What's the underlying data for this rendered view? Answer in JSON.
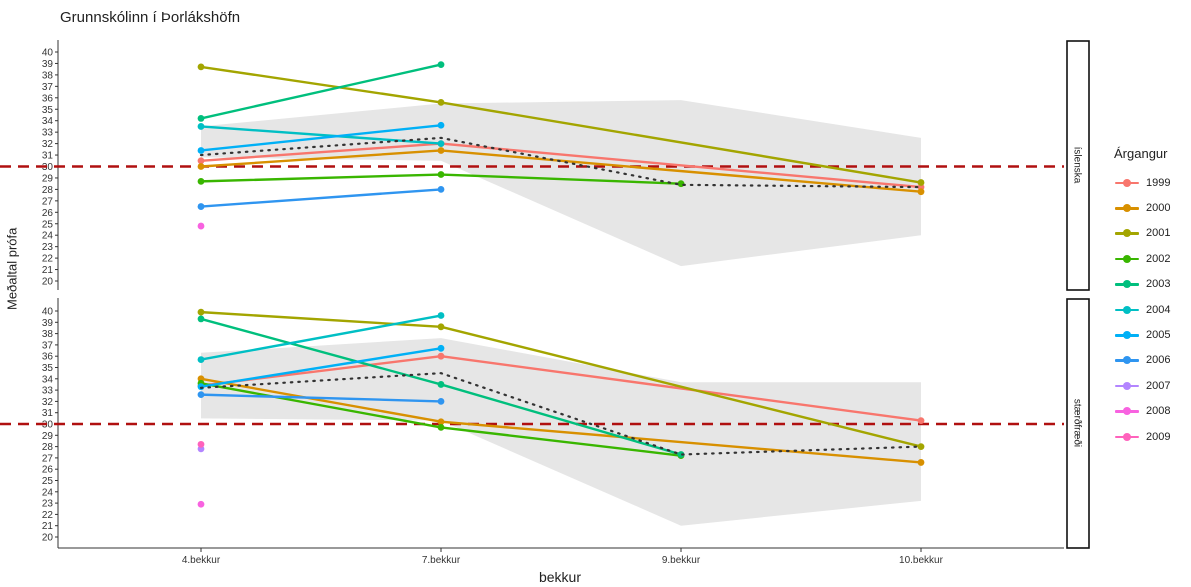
{
  "chart_data": {
    "type": "line",
    "title": "Grunnskólinn í Þorlákshöfn",
    "xlabel": "bekkur",
    "ylabel": "Meðaltal prófa",
    "categories": [
      "4.bekkur",
      "7.bekkur",
      "9.bekkur",
      "10.bekkur"
    ],
    "ylim": [
      19,
      41
    ],
    "yticks": [
      20,
      21,
      22,
      23,
      24,
      25,
      26,
      27,
      28,
      29,
      30,
      31,
      32,
      33,
      34,
      35,
      36,
      37,
      38,
      39,
      40
    ],
    "reference_line": 30,
    "legend": {
      "title": "Árgangur",
      "position": "right"
    },
    "grid": false,
    "series_colors": {
      "1999": "#F8766D",
      "2000": "#D89000",
      "2001": "#A3A500",
      "2002": "#39B600",
      "2003": "#00BF7D",
      "2004": "#00BFC4",
      "2005": "#00B0F6",
      "2006": "#2F95F0",
      "2007": "#B385FF",
      "2008": "#F862E0",
      "2009": "#FF62BC"
    },
    "panels": [
      {
        "strip": "íslenska",
        "series": [
          {
            "name": "1999",
            "values": [
              30.5,
              32.0,
              null,
              28.2
            ]
          },
          {
            "name": "2000",
            "values": [
              30.0,
              31.4,
              null,
              27.8
            ]
          },
          {
            "name": "2001",
            "values": [
              38.7,
              35.6,
              null,
              28.6
            ]
          },
          {
            "name": "2002",
            "values": [
              28.7,
              29.3,
              28.5,
              null
            ]
          },
          {
            "name": "2003",
            "values": [
              34.2,
              38.9,
              null,
              null
            ]
          },
          {
            "name": "2004",
            "values": [
              33.5,
              32.0,
              null,
              null
            ]
          },
          {
            "name": "2005",
            "values": [
              31.4,
              33.6,
              null,
              null
            ]
          },
          {
            "name": "2006",
            "values": [
              26.5,
              28.0,
              null,
              null
            ]
          },
          {
            "name": "2008",
            "values": [
              24.8,
              null,
              null,
              null
            ]
          }
        ],
        "mean": [
          31.0,
          32.5,
          28.4,
          28.2
        ],
        "band": {
          "lower": [
            30.8,
            30.5,
            21.3,
            24.0
          ],
          "upper": [
            33.5,
            35.5,
            35.8,
            32.5
          ]
        }
      },
      {
        "strip": "stærðfræði",
        "series": [
          {
            "name": "1999",
            "values": [
              33.4,
              36.0,
              null,
              30.3
            ]
          },
          {
            "name": "2000",
            "values": [
              34.0,
              30.2,
              null,
              26.6
            ]
          },
          {
            "name": "2001",
            "values": [
              39.9,
              38.6,
              null,
              28.0
            ]
          },
          {
            "name": "2002",
            "values": [
              33.6,
              29.7,
              27.2,
              null
            ]
          },
          {
            "name": "2003",
            "values": [
              39.3,
              33.5,
              27.3,
              null
            ]
          },
          {
            "name": "2004",
            "values": [
              35.7,
              39.6,
              null,
              null
            ]
          },
          {
            "name": "2005",
            "values": [
              33.3,
              36.7,
              null,
              null
            ]
          },
          {
            "name": "2006",
            "values": [
              32.6,
              32.0,
              null,
              null
            ]
          },
          {
            "name": "2007",
            "values": [
              27.8,
              null,
              null,
              null
            ]
          },
          {
            "name": "2008",
            "values": [
              22.9,
              null,
              null,
              null
            ]
          },
          {
            "name": "2009",
            "values": [
              28.2,
              null,
              null,
              null
            ]
          }
        ],
        "mean": [
          33.2,
          34.5,
          27.3,
          28.0
        ],
        "band": {
          "lower": [
            30.5,
            30.3,
            21.0,
            23.2
          ],
          "upper": [
            36.3,
            37.6,
            33.7,
            33.7
          ]
        }
      }
    ]
  }
}
